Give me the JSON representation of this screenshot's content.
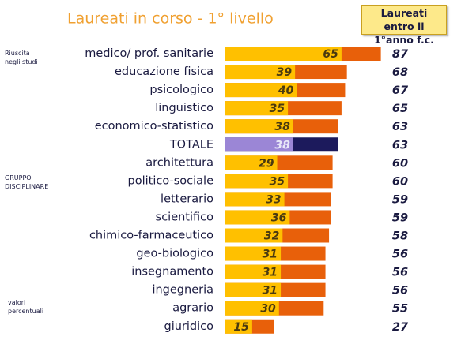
{
  "chart_data": {
    "type": "bar",
    "orientation": "horizontal",
    "overlap": true,
    "title": "Laureati in corso - 1° livello",
    "annotations": [
      "Riuscita negli studi",
      "GRUPPO DISCIPLINARE",
      "valori percentuali"
    ],
    "categories": [
      "medico/ prof. sanitarie",
      "educazione fisica",
      "psicologico",
      "linguistico",
      "economico-statistico",
      "TOTALE",
      "architettura",
      "politico-sociale",
      "letterario",
      "scientifico",
      "chimico-farmaceutico",
      "geo-biologico",
      "insegnamento",
      "ingegneria",
      "agrario",
      "giuridico"
    ],
    "series": [
      {
        "colors": [
          "#ffc000",
          "#ffc000",
          "#ffc000",
          "#ffc000",
          "#ffc000",
          "#9b86d6",
          "#ffc000",
          "#ffc000",
          "#ffc000",
          "#ffc000",
          "#ffc000",
          "#ffc000",
          "#ffc000",
          "#ffc000",
          "#ffc000",
          "#ffc000"
        ],
        "values": [
          65,
          39,
          40,
          35,
          38,
          38,
          29,
          35,
          33,
          36,
          32,
          31,
          31,
          31,
          30,
          15
        ]
      },
      {
        "name": "Laureati entro il 1°anno f.c.",
        "colors": [
          "#e8600a",
          "#e8600a",
          "#e8600a",
          "#e8600a",
          "#e8600a",
          "#1c1a5c",
          "#e8600a",
          "#e8600a",
          "#e8600a",
          "#e8600a",
          "#e8600a",
          "#e8600a",
          "#e8600a",
          "#e8600a",
          "#e8600a",
          "#e8600a"
        ],
        "values": [
          87,
          68,
          67,
          65,
          63,
          63,
          60,
          60,
          59,
          59,
          58,
          56,
          56,
          56,
          55,
          27
        ]
      }
    ],
    "xlim": [
      0,
      100
    ]
  }
}
